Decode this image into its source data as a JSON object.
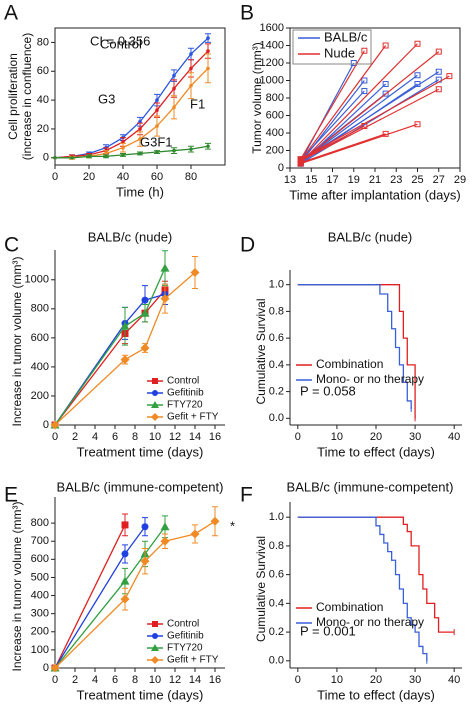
{
  "chart_data": [
    {
      "panel": "A",
      "type": "line",
      "annotation": "CI = 0.356",
      "xlabel": "Time (h)",
      "ylabel": [
        "Cell proliferation",
        "(increase in confluence)"
      ],
      "x": [
        0,
        10,
        20,
        30,
        40,
        50,
        60,
        70,
        80,
        90
      ],
      "xlim": [
        0,
        100
      ],
      "xticks": [
        0,
        20,
        40,
        60,
        80
      ],
      "ylim": [
        -5,
        90
      ],
      "yticks": [
        0,
        20,
        40,
        60,
        80
      ],
      "legend": "inline",
      "series": [
        {
          "name": "Control",
          "color": "#2a56e0",
          "marker": "circle",
          "values": [
            0,
            1,
            3,
            7,
            14,
            25,
            40,
            57,
            72,
            83
          ],
          "errors": [
            0,
            1,
            1,
            2,
            2,
            3,
            4,
            4,
            4,
            3
          ]
        },
        {
          "name": "G3",
          "color": "#e02020",
          "marker": "circle",
          "values": [
            0,
            1,
            2,
            5,
            11,
            20,
            33,
            48,
            62,
            74
          ],
          "errors": [
            0,
            1,
            1,
            2,
            3,
            4,
            5,
            6,
            6,
            5
          ]
        },
        {
          "name": "F1",
          "color": "#f08a24",
          "marker": "circle",
          "values": [
            0,
            0,
            1,
            3,
            7,
            13,
            22,
            35,
            50,
            62
          ],
          "errors": [
            0,
            1,
            1,
            2,
            3,
            5,
            7,
            8,
            9,
            10
          ]
        },
        {
          "name": "G3F1",
          "color": "#2f8a2f",
          "marker": "circle",
          "values": [
            0,
            0,
            1,
            1,
            2,
            3,
            4,
            5,
            6,
            8
          ],
          "errors": [
            0,
            0,
            1,
            1,
            1,
            1,
            1,
            2,
            2,
            2
          ]
        }
      ]
    },
    {
      "panel": "B",
      "type": "line",
      "xlabel": "Time after implantation (days)",
      "ylabel": [
        "Tumor volume (mm³)"
      ],
      "xlim": [
        13,
        29
      ],
      "xticks": [
        13,
        15,
        17,
        19,
        21,
        23,
        25,
        27,
        29
      ],
      "ylim": [
        0,
        1600
      ],
      "yticks": [
        0,
        200,
        400,
        600,
        800,
        1000,
        1200,
        1400,
        1600
      ],
      "legend": "upper left",
      "series": [
        {
          "name": "BALB/c",
          "color": "#3a5fd8",
          "marker": "square",
          "lines": [
            {
              "x": [
                14,
                19
              ],
              "values": [
                70,
                1200
              ]
            },
            {
              "x": [
                14,
                20
              ],
              "values": [
                60,
                1000
              ]
            },
            {
              "x": [
                14,
                20
              ],
              "values": [
                90,
                880
              ]
            },
            {
              "x": [
                14,
                22
              ],
              "values": [
                50,
                960
              ]
            },
            {
              "x": [
                14,
                22
              ],
              "values": [
                80,
                850
              ]
            },
            {
              "x": [
                14,
                25
              ],
              "values": [
                70,
                1060
              ]
            },
            {
              "x": [
                14,
                25
              ],
              "values": [
                60,
                960
              ]
            },
            {
              "x": [
                14,
                27
              ],
              "values": [
                80,
                1100
              ]
            },
            {
              "x": [
                14,
                27
              ],
              "values": [
                50,
                1010
              ]
            }
          ]
        },
        {
          "name": "Nude",
          "color": "#e03030",
          "marker": "square",
          "lines": [
            {
              "x": [
                14,
                20
              ],
              "values": [
                100,
                1340
              ]
            },
            {
              "x": [
                14,
                22
              ],
              "values": [
                80,
                1400
              ]
            },
            {
              "x": [
                14,
                25
              ],
              "values": [
                60,
                1420
              ]
            },
            {
              "x": [
                14,
                27
              ],
              "values": [
                70,
                1330
              ]
            },
            {
              "x": [
                14,
                20
              ],
              "values": [
                90,
                480
              ]
            },
            {
              "x": [
                14,
                22
              ],
              "values": [
                60,
                390
              ]
            },
            {
              "x": [
                14,
                25
              ],
              "values": [
                50,
                500
              ]
            },
            {
              "x": [
                14,
                27
              ],
              "values": [
                80,
                900
              ]
            },
            {
              "x": [
                14,
                28
              ],
              "values": [
                100,
                1050
              ]
            }
          ]
        }
      ]
    },
    {
      "panel": "C",
      "type": "line",
      "title": "BALB/c (nude)",
      "xlabel": "Treatment time (days)",
      "ylabel": [
        "Increase in tumor volume (mm³)"
      ],
      "xlim": [
        0,
        17
      ],
      "xticks": [
        0,
        2,
        4,
        6,
        8,
        10,
        12,
        14,
        16
      ],
      "ylim": [
        0,
        1150
      ],
      "yticks": [
        0,
        200,
        400,
        600,
        800,
        1000
      ],
      "legend": "lower right",
      "series": [
        {
          "name": "Control",
          "color": "#e02020",
          "marker": "square",
          "x": [
            0,
            7,
            9,
            11
          ],
          "values": [
            0,
            630,
            770,
            930
          ],
          "errors": [
            0,
            70,
            60,
            60
          ]
        },
        {
          "name": "Gefitinib",
          "color": "#2040e0",
          "marker": "circle",
          "x": [
            0,
            7,
            9,
            11
          ],
          "values": [
            0,
            700,
            860,
            900
          ],
          "errors": [
            0,
            110,
            100,
            70
          ]
        },
        {
          "name": "FTY720",
          "color": "#30a040",
          "marker": "triangle",
          "x": [
            0,
            7,
            9,
            11
          ],
          "values": [
            0,
            680,
            770,
            1080
          ],
          "errors": [
            0,
            130,
            60,
            120
          ]
        },
        {
          "name": "Gefit + FTY",
          "color": "#f08a24",
          "marker": "diamond",
          "x": [
            0,
            7,
            9,
            11,
            14
          ],
          "values": [
            0,
            450,
            530,
            870,
            1050
          ],
          "errors": [
            0,
            30,
            30,
            100,
            110
          ]
        }
      ]
    },
    {
      "panel": "D",
      "type": "step",
      "title": "BALB/c (nude)",
      "annotation": "P = 0.058",
      "xlabel": "Time to effect (days)",
      "ylabel": [
        "Cumulative Survival"
      ],
      "xlim": [
        -2,
        42
      ],
      "xticks": [
        0,
        10,
        20,
        30,
        40
      ],
      "ylim": [
        -0.05,
        1.05
      ],
      "yticks": [
        {
          "value": 0,
          "label": "0.0"
        },
        0.2,
        0.4,
        0.6,
        0.8,
        {
          "value": 1,
          "label": "1.0"
        }
      ],
      "legend": "lower left",
      "series": [
        {
          "name": "Combination",
          "color": "#e02020",
          "x": [
            0,
            26,
            27,
            28,
            30
          ],
          "values": [
            1,
            0.8,
            0.6,
            0.4,
            0
          ]
        },
        {
          "name": "Mono- or no therapy",
          "color": "#3a5fd8",
          "x": [
            0,
            21,
            23,
            24,
            25,
            26,
            27,
            28,
            29
          ],
          "values": [
            1,
            0.93,
            0.8,
            0.67,
            0.53,
            0.4,
            0.27,
            0.13,
            0.07
          ]
        }
      ]
    },
    {
      "panel": "E",
      "type": "line",
      "title": "BALB/c (immune-competent)",
      "annotation": "*",
      "xlabel": "Treatment time (days)",
      "ylabel": [
        "Increase in tumor volume (mm³)"
      ],
      "xlim": [
        0,
        17
      ],
      "xticks": [
        0,
        2,
        4,
        6,
        8,
        10,
        12,
        14,
        16
      ],
      "ylim": [
        0,
        900
      ],
      "yticks": [
        0,
        100,
        200,
        300,
        400,
        500,
        600,
        700,
        800
      ],
      "legend": "lower right",
      "series": [
        {
          "name": "Control",
          "color": "#e02020",
          "marker": "square",
          "x": [
            0,
            7
          ],
          "values": [
            0,
            790
          ],
          "errors": [
            0,
            60
          ]
        },
        {
          "name": "Gefitinib",
          "color": "#2040e0",
          "marker": "circle",
          "x": [
            0,
            7,
            9
          ],
          "values": [
            0,
            630,
            780
          ],
          "errors": [
            0,
            50,
            50
          ]
        },
        {
          "name": "FTY720",
          "color": "#30a040",
          "marker": "triangle",
          "x": [
            0,
            7,
            9,
            11
          ],
          "values": [
            0,
            480,
            630,
            780
          ],
          "errors": [
            0,
            70,
            70,
            60
          ]
        },
        {
          "name": "Gefit + FTY",
          "color": "#f08a24",
          "marker": "diamond",
          "x": [
            0,
            7,
            9,
            11,
            14,
            16
          ],
          "values": [
            0,
            380,
            590,
            700,
            740,
            810
          ],
          "errors": [
            0,
            60,
            70,
            40,
            50,
            80
          ]
        }
      ]
    },
    {
      "panel": "F",
      "type": "step",
      "title": "BALB/c (immune-competent)",
      "annotation": "P = 0.001",
      "xlabel": "Time to effect (days)",
      "ylabel": [
        "Cumulative Survival"
      ],
      "xlim": [
        -2,
        42
      ],
      "xticks": [
        0,
        10,
        20,
        30,
        40
      ],
      "ylim": [
        -0.05,
        1.05
      ],
      "yticks": [
        {
          "value": 0,
          "label": "0.0"
        },
        0.2,
        0.4,
        0.6,
        0.8,
        {
          "value": 1,
          "label": "1.0"
        }
      ],
      "legend": "lower left",
      "series": [
        {
          "name": "Combination",
          "color": "#e02020",
          "x": [
            0,
            27,
            28,
            29,
            31,
            32,
            33,
            35,
            36,
            40
          ],
          "values": [
            1,
            0.95,
            0.9,
            0.8,
            0.6,
            0.5,
            0.4,
            0.3,
            0.2,
            0.2
          ]
        },
        {
          "name": "Mono- or no therapy",
          "color": "#3a5fd8",
          "x": [
            0,
            20,
            21,
            22,
            23,
            24,
            25,
            26,
            27,
            28,
            29,
            30,
            31,
            32,
            33
          ],
          "values": [
            1,
            0.94,
            0.88,
            0.82,
            0.76,
            0.7,
            0.6,
            0.5,
            0.4,
            0.3,
            0.25,
            0.2,
            0.1,
            0.05,
            0
          ]
        }
      ]
    }
  ]
}
